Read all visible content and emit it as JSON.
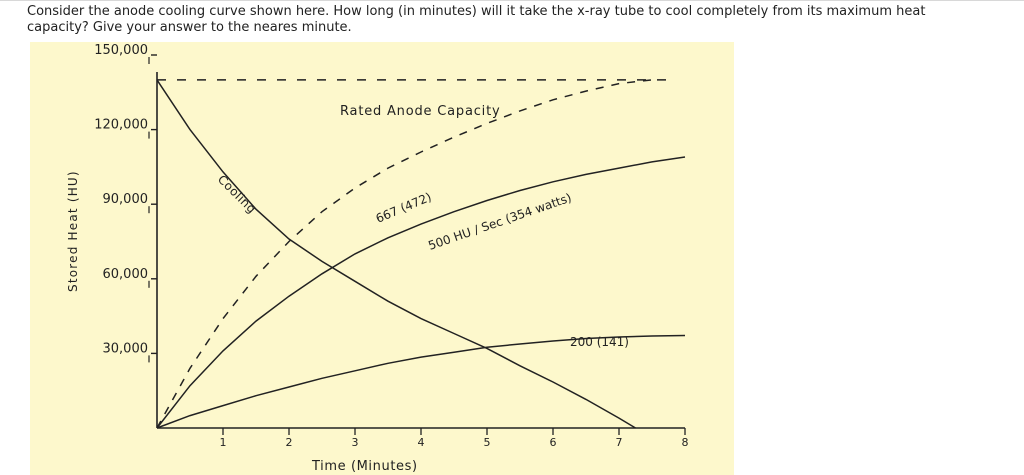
{
  "question": {
    "line1": "Consider the anode cooling curve shown here.  How long (in minutes) will it take the x-ray tube to cool completely from its maximum heat",
    "line2": "capacity?  Give your answer to the neares minute."
  },
  "colors": {
    "figure_background": "#fdf8cc",
    "ink": "#222222"
  },
  "chart_data": {
    "type": "line",
    "title": "",
    "xlabel": "Time   (Minutes)",
    "ylabel": "Stored  Heat  (HU)",
    "xlim": [
      0,
      8
    ],
    "ylim": [
      0,
      150000
    ],
    "x_ticks": [
      "1",
      "2",
      "3",
      "4",
      "5",
      "6",
      "7",
      "8"
    ],
    "y_ticks": [
      "30,000",
      "60,000",
      "90,000",
      "120,000",
      "150,000"
    ],
    "grid": false,
    "annotations": {
      "capacity": "Rated  Anode  Capacity",
      "cooling": "Cooling",
      "s667": "667  (472)",
      "s500": "500  HU / Sec   (354 watts)",
      "s200": "200  (141)"
    },
    "capacity_level": 140000,
    "series": [
      {
        "key": "cooling",
        "style": "solid",
        "x": [
          0,
          0.5,
          1,
          1.5,
          2,
          2.5,
          3,
          3.5,
          4,
          4.5,
          5,
          5.5,
          6,
          6.5,
          7,
          7.25
        ],
        "y": [
          140000,
          120000,
          103000,
          88000,
          76000,
          67000,
          59000,
          51000,
          44000,
          38000,
          32000,
          25000,
          18500,
          11500,
          4000,
          0
        ]
      },
      {
        "key": "s667",
        "style": "dashed",
        "x": [
          0,
          0.5,
          1,
          1.5,
          2,
          2.5,
          3,
          3.5,
          4,
          4.5,
          5,
          5.5,
          6,
          6.5,
          7,
          7.5
        ],
        "y": [
          0,
          24000,
          44000,
          61000,
          75000,
          87000,
          96500,
          104500,
          111000,
          117000,
          122500,
          127500,
          132000,
          135500,
          138500,
          140000
        ]
      },
      {
        "key": "s500",
        "style": "solid",
        "x": [
          0,
          0.5,
          1,
          1.5,
          2,
          2.5,
          3,
          3.5,
          4,
          4.5,
          5,
          5.5,
          6,
          6.5,
          7,
          7.5,
          8
        ],
        "y": [
          0,
          17000,
          31000,
          43000,
          53000,
          62000,
          70000,
          76500,
          82000,
          87000,
          91500,
          95500,
          99000,
          102000,
          104500,
          107000,
          109000
        ]
      },
      {
        "key": "s200",
        "style": "solid",
        "x": [
          0,
          0.5,
          1,
          1.5,
          2,
          2.5,
          3,
          3.5,
          4,
          4.5,
          5,
          5.5,
          6,
          6.5,
          7,
          7.5,
          8
        ],
        "y": [
          0,
          5000,
          9000,
          13000,
          16500,
          20000,
          23000,
          26000,
          28500,
          30500,
          32500,
          33800,
          35000,
          36000,
          36600,
          37000,
          37200
        ]
      }
    ]
  }
}
